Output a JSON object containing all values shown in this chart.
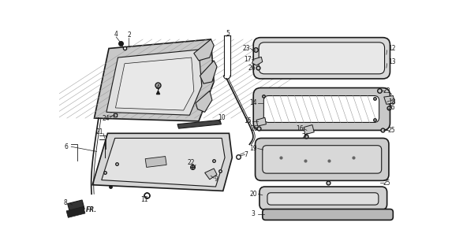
{
  "bg_color": "#ffffff",
  "line_color": "#1a1a1a",
  "fig_width": 5.87,
  "fig_height": 3.2,
  "dpi": 100,
  "hatch_color": "#888888",
  "gray_fill": "#c8c8c8",
  "light_gray": "#e0e0e0",
  "dark_gray": "#555555"
}
